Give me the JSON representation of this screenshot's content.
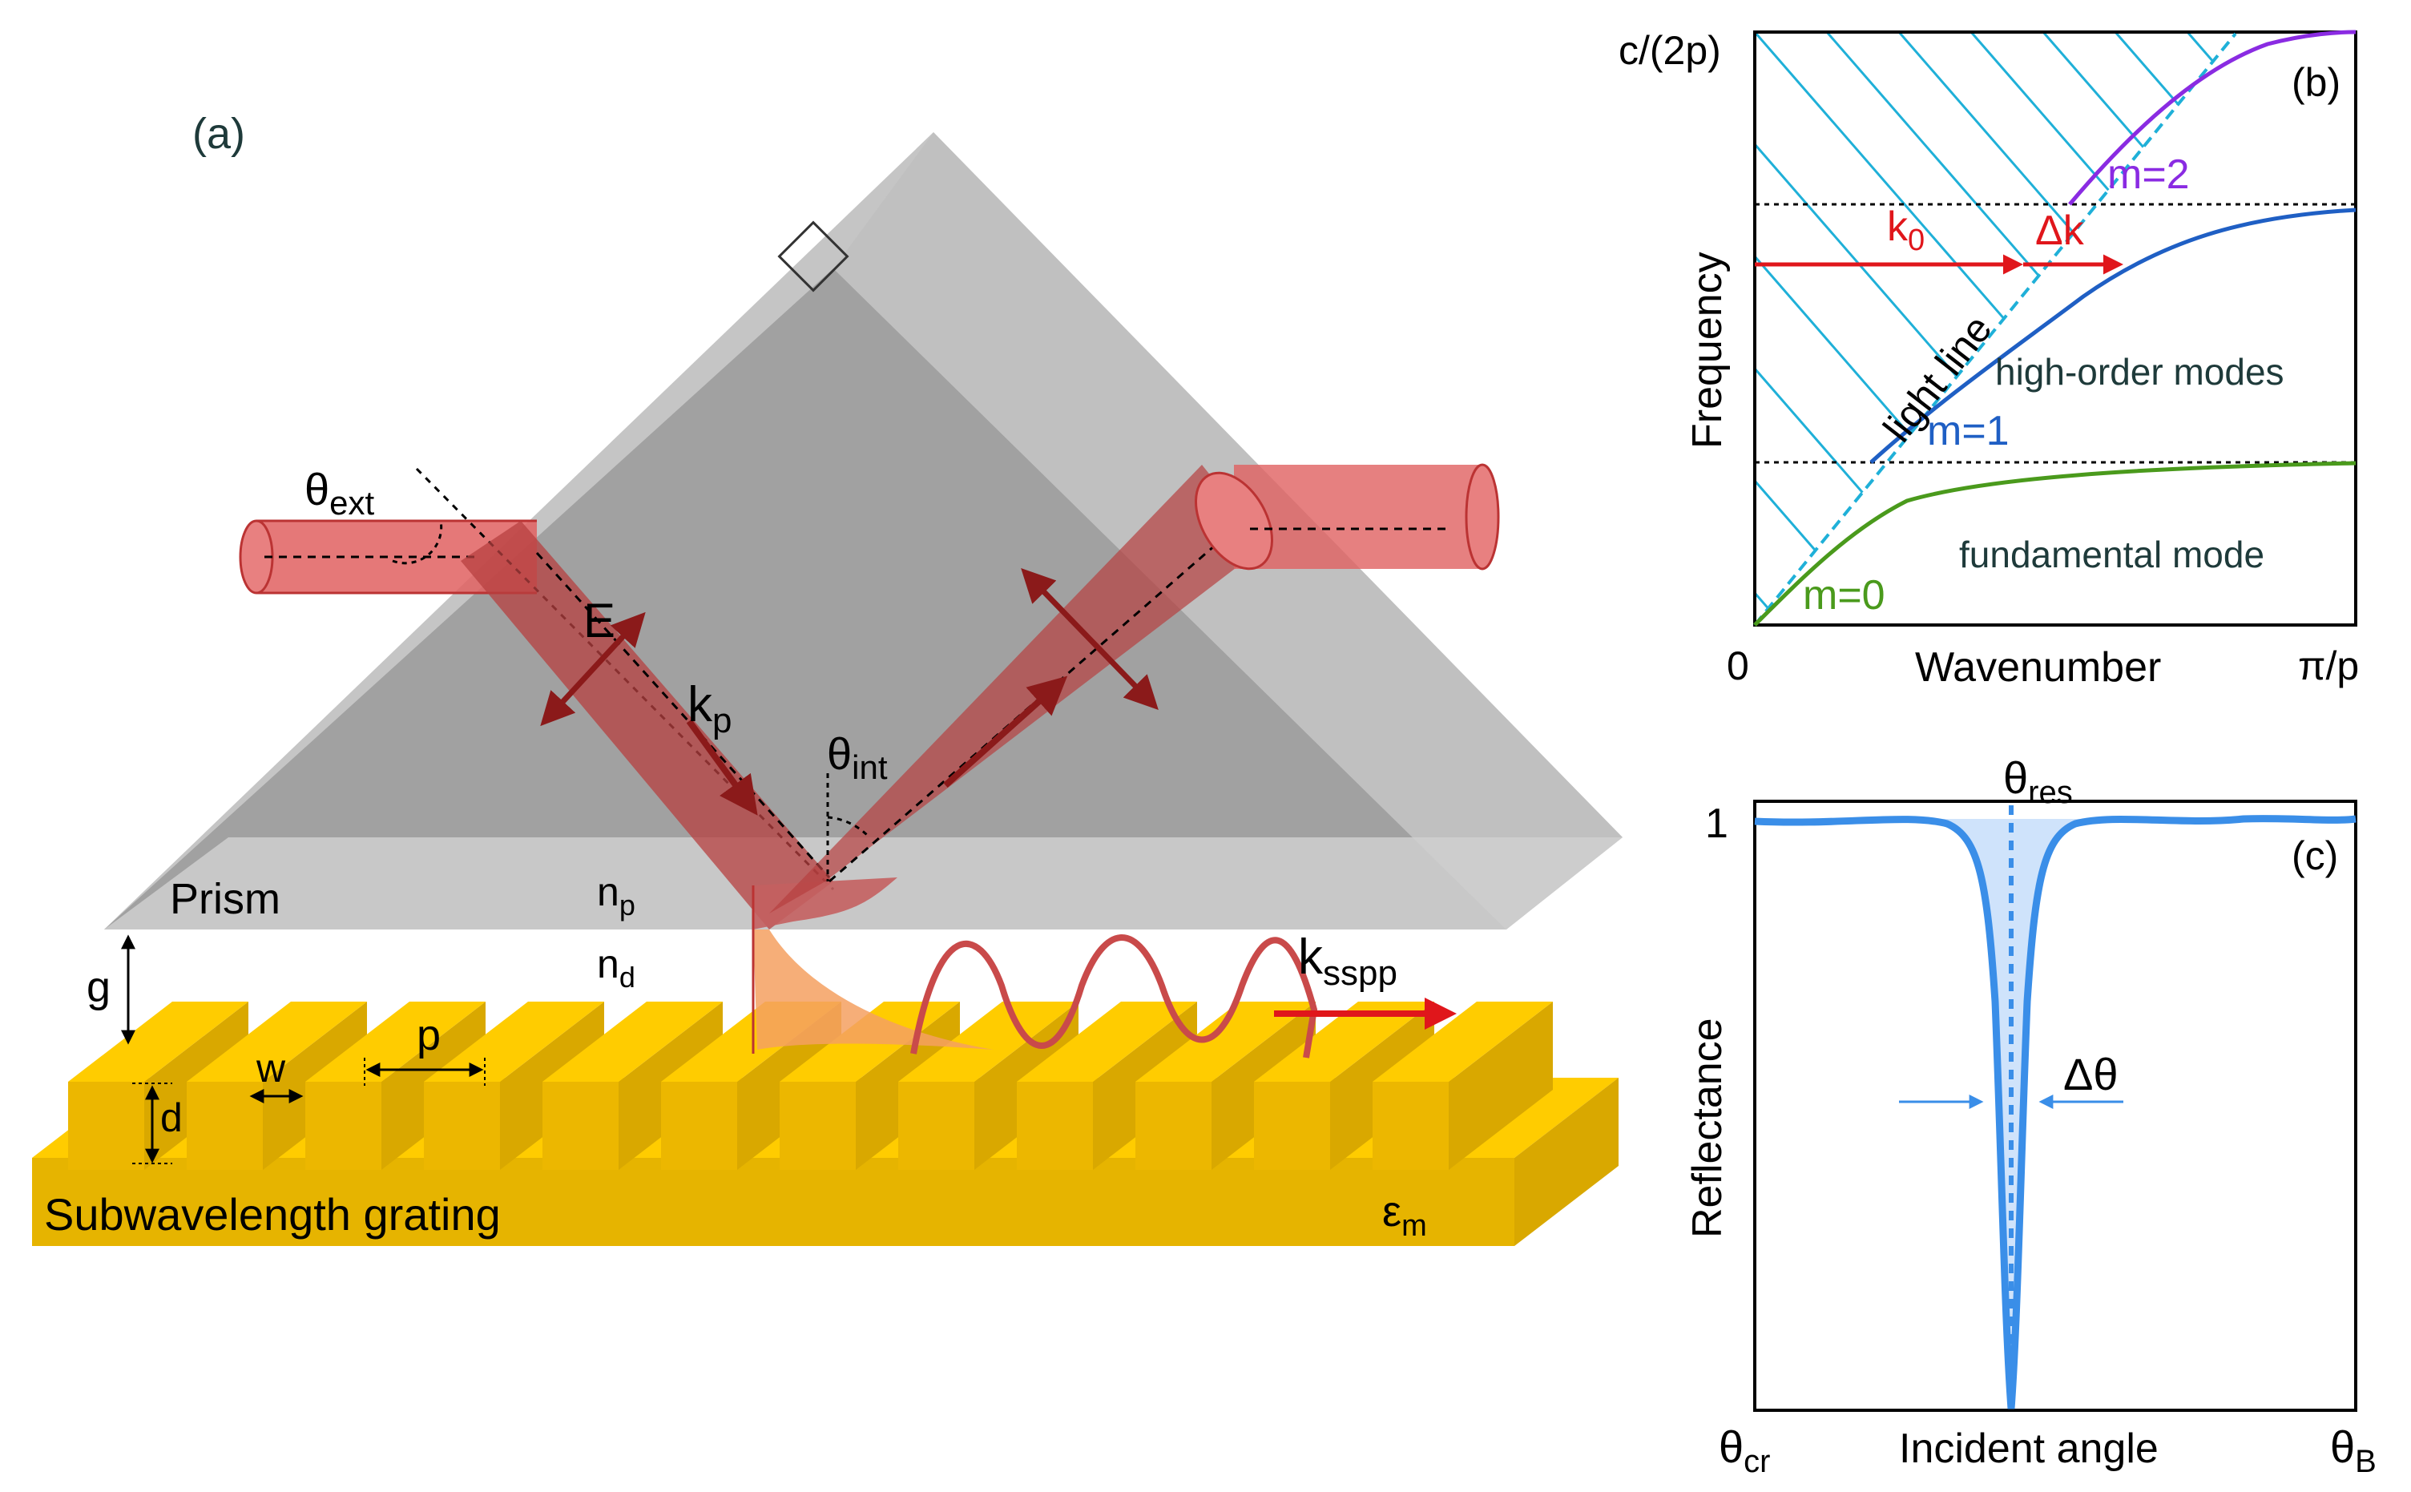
{
  "panel_a": {
    "label": "(a)",
    "theta_ext": {
      "sym": "θ",
      "sub": "ext"
    },
    "e_field": "E",
    "k_p": {
      "sym": "k",
      "sub": "p"
    },
    "theta_int": {
      "sym": "θ",
      "sub": "int"
    },
    "prism": "Prism",
    "n_p": {
      "sym": "n",
      "sub": "p"
    },
    "n_d": {
      "sym": "n",
      "sub": "d"
    },
    "g": "g",
    "p": "p",
    "w": "w",
    "d": "d",
    "k_sspp": {
      "sym": "k",
      "sub": "sspp"
    },
    "grating": "Subwavelength grating",
    "eps_m": {
      "sym": "ε",
      "sub": "m"
    }
  },
  "panel_b": {
    "label": "(b)",
    "y_top": "c/(2p)",
    "y_axis": "Frequency",
    "x_axis": "Wavenumber",
    "x_start": "0",
    "x_end": "π/p",
    "m2": "m=2",
    "m1": "m=1",
    "m0": "m=0",
    "k0": {
      "sym": "k",
      "sub": "0"
    },
    "dk": "Δk",
    "light_line": "light line",
    "high_order": "high-order modes",
    "fundamental": "fundamental mode"
  },
  "panel_c": {
    "label": "(c)",
    "theta_res": {
      "sym": "θ",
      "sub": "res"
    },
    "one": "1",
    "y_axis": "Reflectance",
    "x_axis": "Incident angle",
    "theta_cr": {
      "sym": "θ",
      "sub": "cr"
    },
    "theta_b": {
      "sym": "θ",
      "sub": "B"
    },
    "dtheta": "Δθ"
  },
  "colors": {
    "gold_top": "#ffcc00",
    "gold_side": "#ecb700",
    "gold_dark": "#d9a800",
    "beam": "#c94a4a",
    "dark_red": "#8b1a1a",
    "cyan": "#1fb0d8",
    "blue": "#1f5fc4",
    "purple": "#8a2be2",
    "green": "#4a9a1c",
    "red_arrow": "#e0161b",
    "reflect_blue": "#3a8ee8"
  }
}
